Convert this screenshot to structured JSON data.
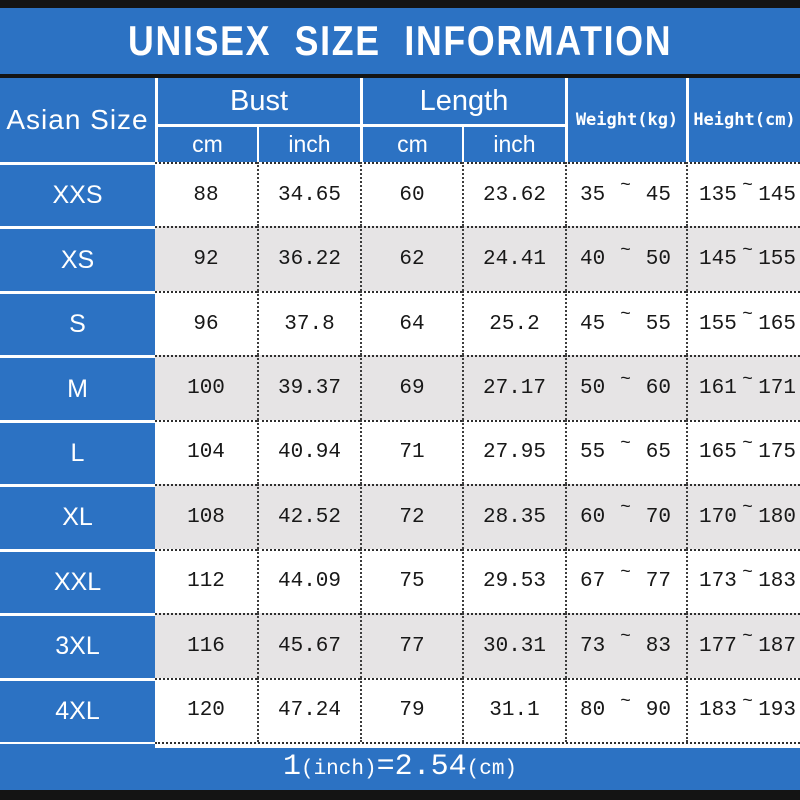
{
  "title": "UNISEX SIZE INFORMATION",
  "colors": {
    "blue": "#2c72c3",
    "gray_row": "#e6e4e5",
    "black_bar": "#141414"
  },
  "table": {
    "corner_header": "Asian Size",
    "groups": [
      {
        "label": "Bust",
        "subs": [
          "cm",
          "inch"
        ]
      },
      {
        "label": "Length",
        "subs": [
          "cm",
          "inch"
        ]
      }
    ],
    "single_headers": [
      "Weight(kg)",
      "Height(cm)"
    ],
    "tilde": "~",
    "rows": [
      {
        "size": "XXS",
        "bust_cm": "88",
        "bust_inch": "34.65",
        "length_cm": "60",
        "length_inch": "23.62",
        "weight": {
          "min": "35",
          "max": "45"
        },
        "height": {
          "min": "135",
          "max": "145"
        }
      },
      {
        "size": "XS",
        "bust_cm": "92",
        "bust_inch": "36.22",
        "length_cm": "62",
        "length_inch": "24.41",
        "weight": {
          "min": "40",
          "max": "50"
        },
        "height": {
          "min": "145",
          "max": "155"
        }
      },
      {
        "size": "S",
        "bust_cm": "96",
        "bust_inch": "37.8",
        "length_cm": "64",
        "length_inch": "25.2",
        "weight": {
          "min": "45",
          "max": "55"
        },
        "height": {
          "min": "155",
          "max": "165"
        }
      },
      {
        "size": "M",
        "bust_cm": "100",
        "bust_inch": "39.37",
        "length_cm": "69",
        "length_inch": "27.17",
        "weight": {
          "min": "50",
          "max": "60"
        },
        "height": {
          "min": "161",
          "max": "171"
        }
      },
      {
        "size": "L",
        "bust_cm": "104",
        "bust_inch": "40.94",
        "length_cm": "71",
        "length_inch": "27.95",
        "weight": {
          "min": "55",
          "max": "65"
        },
        "height": {
          "min": "165",
          "max": "175"
        }
      },
      {
        "size": "XL",
        "bust_cm": "108",
        "bust_inch": "42.52",
        "length_cm": "72",
        "length_inch": "28.35",
        "weight": {
          "min": "60",
          "max": "70"
        },
        "height": {
          "min": "170",
          "max": "180"
        }
      },
      {
        "size": "XXL",
        "bust_cm": "112",
        "bust_inch": "44.09",
        "length_cm": "75",
        "length_inch": "29.53",
        "weight": {
          "min": "67",
          "max": "77"
        },
        "height": {
          "min": "173",
          "max": "183"
        }
      },
      {
        "size": "3XL",
        "bust_cm": "116",
        "bust_inch": "45.67",
        "length_cm": "77",
        "length_inch": "30.31",
        "weight": {
          "min": "73",
          "max": "83"
        },
        "height": {
          "min": "177",
          "max": "187"
        }
      },
      {
        "size": "4XL",
        "bust_cm": "120",
        "bust_inch": "47.24",
        "length_cm": "79",
        "length_inch": "31.1",
        "weight": {
          "min": "80",
          "max": "90"
        },
        "height": {
          "min": "183",
          "max": "193"
        }
      }
    ]
  },
  "footer": {
    "text": "1(inch)=2.54(cm)",
    "parts": [
      {
        "text": "1",
        "size": "lg"
      },
      {
        "text": "(inch)",
        "size": "sm"
      },
      {
        "text": "=2.54",
        "size": "lg"
      },
      {
        "text": "(cm)",
        "size": "sm"
      }
    ]
  },
  "chart_data": {
    "type": "table",
    "title": "UNISEX SIZE INFORMATION",
    "columns": [
      "Asian Size",
      "Bust cm",
      "Bust inch",
      "Length cm",
      "Length inch",
      "Weight(kg)",
      "Height(cm)"
    ],
    "rows": [
      [
        "XXS",
        88,
        34.65,
        60,
        23.62,
        "35~45",
        "135~145"
      ],
      [
        "XS",
        92,
        36.22,
        62,
        24.41,
        "40~50",
        "145~155"
      ],
      [
        "S",
        96,
        37.8,
        64,
        25.2,
        "45~55",
        "155~165"
      ],
      [
        "M",
        100,
        39.37,
        69,
        27.17,
        "50~60",
        "161~171"
      ],
      [
        "L",
        104,
        40.94,
        71,
        27.95,
        "55~65",
        "165~175"
      ],
      [
        "XL",
        108,
        42.52,
        72,
        28.35,
        "60~70",
        "170~180"
      ],
      [
        "XXL",
        112,
        44.09,
        75,
        29.53,
        "67~77",
        "173~183"
      ],
      [
        "3XL",
        116,
        45.67,
        77,
        30.31,
        "73~83",
        "177~187"
      ],
      [
        "4XL",
        120,
        47.24,
        79,
        31.1,
        "80~90",
        "183~193"
      ]
    ],
    "note": "1(inch)=2.54(cm)"
  }
}
